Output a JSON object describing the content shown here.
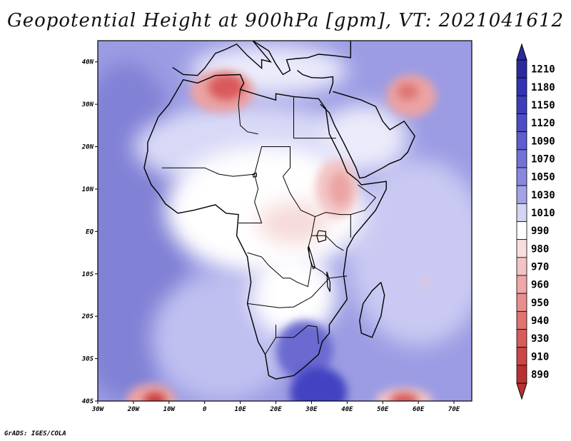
{
  "title": "Geopotential Height at 900hPa [gpm], VT: 2021041612",
  "credit": "GrADS: IGES/COLA",
  "map": {
    "lon_range": [
      -30,
      75
    ],
    "lat_range": [
      -40,
      45
    ],
    "lon_ticks": [
      {
        "value": -30,
        "label": "30W"
      },
      {
        "value": -20,
        "label": "20W"
      },
      {
        "value": -10,
        "label": "10W"
      },
      {
        "value": 0,
        "label": "0"
      },
      {
        "value": 10,
        "label": "10E"
      },
      {
        "value": 20,
        "label": "20E"
      },
      {
        "value": 30,
        "label": "30E"
      },
      {
        "value": 40,
        "label": "40E"
      },
      {
        "value": 50,
        "label": "50E"
      },
      {
        "value": 60,
        "label": "60E"
      },
      {
        "value": 70,
        "label": "70E"
      }
    ],
    "lat_ticks": [
      {
        "value": 40,
        "label": "40N"
      },
      {
        "value": 30,
        "label": "30N"
      },
      {
        "value": 20,
        "label": "20N"
      },
      {
        "value": 10,
        "label": "10N"
      },
      {
        "value": 0,
        "label": "EQ"
      },
      {
        "value": -10,
        "label": "10S"
      },
      {
        "value": -20,
        "label": "20S"
      },
      {
        "value": -30,
        "label": "30S"
      },
      {
        "value": -40,
        "label": "40S"
      }
    ],
    "background_color": "#9c9ce4",
    "coastline_color": "#000000",
    "field_blobs": [
      {
        "name": "atlantic-deep",
        "lon": -22,
        "lat": 0,
        "rx_deg": 18,
        "ry_deg": 40,
        "color": "#8181d6"
      },
      {
        "name": "southeast-atlantic",
        "lon": 5,
        "lat": -25,
        "rx_deg": 20,
        "ry_deg": 15,
        "color": "#bfbff0"
      },
      {
        "name": "indian-ocean",
        "lon": 60,
        "lat": -5,
        "rx_deg": 20,
        "ry_deg": 22,
        "color": "#c9c9f3"
      },
      {
        "name": "africa-belt-north",
        "lon": 12,
        "lat": 20,
        "rx_deg": 32,
        "ry_deg": 10,
        "color": "#d9d9f7"
      },
      {
        "name": "africa-belt-central",
        "lon": 17,
        "lat": 5,
        "rx_deg": 28,
        "ry_deg": 15,
        "color": "#ffffff"
      },
      {
        "name": "southern-africa",
        "lon": 25,
        "lat": -15,
        "rx_deg": 12,
        "ry_deg": 10,
        "color": "#ffffff"
      },
      {
        "name": "south-africa-high",
        "lon": 28,
        "lat": -28,
        "rx_deg": 8,
        "ry_deg": 7,
        "color": "#6a6ad0"
      },
      {
        "name": "mozambique-channel-high",
        "lon": 32,
        "lat": -38,
        "rx_deg": 8,
        "ry_deg": 6,
        "color": "#4343c2"
      },
      {
        "name": "mediterranean",
        "lon": 18,
        "lat": 38,
        "rx_deg": 22,
        "ry_deg": 6,
        "color": "#ebebfb"
      },
      {
        "name": "arabia",
        "lon": 45,
        "lat": 22,
        "rx_deg": 12,
        "ry_deg": 8,
        "color": "#ebebfb"
      },
      {
        "name": "horn-low",
        "lon": 37,
        "lat": 10,
        "rx_deg": 6,
        "ry_deg": 7,
        "color": "#f3c4c4"
      },
      {
        "name": "horn-low-core",
        "lon": 38,
        "lat": 10,
        "rx_deg": 3,
        "ry_deg": 4,
        "color": "#eba3a3"
      },
      {
        "name": "great-lakes-low",
        "lon": 25,
        "lat": 2,
        "rx_deg": 10,
        "ry_deg": 5,
        "color": "#f6dada"
      },
      {
        "name": "sahara-low",
        "lon": 5,
        "lat": 33,
        "rx_deg": 9,
        "ry_deg": 5,
        "color": "#eba3a3"
      },
      {
        "name": "sahara-low-core",
        "lon": 6,
        "lat": 34,
        "rx_deg": 5,
        "ry_deg": 3,
        "color": "#d95a5a"
      },
      {
        "name": "persian-low",
        "lon": 58,
        "lat": 32,
        "rx_deg": 7,
        "ry_deg": 5,
        "color": "#eba3a3"
      },
      {
        "name": "persian-low-core",
        "lon": 57,
        "lat": 33,
        "rx_deg": 3,
        "ry_deg": 2,
        "color": "#df7474"
      },
      {
        "name": "south-atlantic-low",
        "lon": -15,
        "lat": -40,
        "rx_deg": 7,
        "ry_deg": 4,
        "color": "#eba3a3"
      },
      {
        "name": "south-atlantic-low-core",
        "lon": -14,
        "lat": -40,
        "rx_deg": 3,
        "ry_deg": 2,
        "color": "#c83a3a"
      },
      {
        "name": "south-indian-low",
        "lon": 56,
        "lat": -40,
        "rx_deg": 8,
        "ry_deg": 3,
        "color": "#f3c4c4"
      },
      {
        "name": "south-indian-low-core",
        "lon": 56,
        "lat": -40,
        "rx_deg": 4,
        "ry_deg": 2,
        "color": "#d95a5a"
      },
      {
        "name": "madagascar-spot",
        "lon": 62,
        "lat": -12,
        "rx_deg": 1,
        "ry_deg": 1,
        "color": "#f3c4c4"
      }
    ],
    "coastlines": [
      {
        "name": "africa-coastline",
        "points": [
          [
            -17,
            15
          ],
          [
            -16,
            19
          ],
          [
            -16,
            21
          ],
          [
            -13,
            27
          ],
          [
            -10,
            30
          ],
          [
            -6,
            35.8
          ],
          [
            -2,
            35
          ],
          [
            3,
            36.8
          ],
          [
            10,
            37
          ],
          [
            11,
            35
          ],
          [
            10,
            33.5
          ],
          [
            15,
            32.2
          ],
          [
            20,
            31
          ],
          [
            20,
            32.5
          ],
          [
            25,
            31.8
          ],
          [
            32,
            31.3
          ],
          [
            34,
            29
          ],
          [
            35,
            23
          ],
          [
            38,
            18
          ],
          [
            40,
            14
          ],
          [
            43,
            12
          ],
          [
            44,
            11
          ],
          [
            51,
            11.8
          ],
          [
            51,
            10
          ],
          [
            48,
            5
          ],
          [
            42,
            -1
          ],
          [
            40,
            -4
          ],
          [
            39,
            -10
          ],
          [
            40,
            -16
          ],
          [
            35,
            -22
          ],
          [
            35,
            -24
          ],
          [
            33,
            -26
          ],
          [
            32,
            -29
          ],
          [
            28,
            -32
          ],
          [
            25,
            -34
          ],
          [
            20,
            -34.8
          ],
          [
            18,
            -34
          ],
          [
            17,
            -29
          ],
          [
            15,
            -26
          ],
          [
            12,
            -17
          ],
          [
            13,
            -12
          ],
          [
            12,
            -6
          ],
          [
            9,
            -1
          ],
          [
            9.5,
            4
          ],
          [
            6,
            4.3
          ],
          [
            3,
            6.3
          ],
          [
            -3,
            5
          ],
          [
            -7.5,
            4.3
          ],
          [
            -11,
            6.5
          ],
          [
            -13,
            9
          ],
          [
            -15,
            11
          ],
          [
            -17,
            15
          ]
        ]
      },
      {
        "name": "madagascar-coastline",
        "points": [
          [
            49.5,
            -12
          ],
          [
            50.5,
            -15
          ],
          [
            49.5,
            -20
          ],
          [
            47,
            -25
          ],
          [
            44,
            -24
          ],
          [
            43.5,
            -21
          ],
          [
            44.5,
            -17
          ],
          [
            47,
            -14
          ],
          [
            49.5,
            -12
          ]
        ]
      },
      {
        "name": "arabia-coastline",
        "points": [
          [
            32.5,
            30
          ],
          [
            35,
            28
          ],
          [
            36.5,
            25
          ],
          [
            39,
            21
          ],
          [
            42.5,
            15
          ],
          [
            43.5,
            12.6
          ],
          [
            45,
            12.8
          ],
          [
            50,
            15
          ],
          [
            52,
            16
          ],
          [
            55,
            17
          ],
          [
            57,
            18.7
          ],
          [
            59,
            22.5
          ],
          [
            56,
            26
          ],
          [
            52,
            24
          ],
          [
            50,
            26
          ],
          [
            48,
            29.5
          ],
          [
            44,
            31
          ],
          [
            36,
            33
          ]
        ]
      },
      {
        "name": "europe-south-coastline",
        "points": [
          [
            -9,
            38.7
          ],
          [
            -6,
            37
          ],
          [
            -2,
            36.8
          ],
          [
            0,
            38.5
          ],
          [
            3,
            42
          ],
          [
            6,
            43
          ],
          [
            9,
            44.2
          ],
          [
            12,
            41.5
          ],
          [
            16,
            38.5
          ],
          [
            16,
            40.5
          ],
          [
            18.5,
            40
          ],
          [
            13.5,
            45
          ],
          [
            18,
            42.6
          ],
          [
            20,
            39.5
          ],
          [
            22,
            37
          ],
          [
            24,
            38
          ],
          [
            23,
            40.5
          ],
          [
            26,
            40.8
          ],
          [
            29,
            41
          ],
          [
            32,
            41.8
          ],
          [
            36,
            41.5
          ],
          [
            41,
            41
          ],
          [
            41,
            45
          ]
        ]
      },
      {
        "name": "turkey-south-coastline",
        "points": [
          [
            26,
            38
          ],
          [
            27.5,
            37
          ],
          [
            30,
            36.3
          ],
          [
            33,
            36.2
          ],
          [
            36,
            36.5
          ],
          [
            36,
            35
          ],
          [
            35,
            32.5
          ]
        ]
      }
    ],
    "borders": [
      {
        "name": "algeria-libya",
        "points": [
          [
            10,
            33.5
          ],
          [
            9.5,
            30
          ],
          [
            10,
            25
          ],
          [
            12,
            23.5
          ],
          [
            15,
            23
          ]
        ]
      },
      {
        "name": "libya-egypt",
        "points": [
          [
            25,
            31.8
          ],
          [
            25,
            22
          ]
        ]
      },
      {
        "name": "egypt-sudan",
        "points": [
          [
            25,
            22
          ],
          [
            36.9,
            22
          ]
        ]
      },
      {
        "name": "sahel-line",
        "points": [
          [
            -12,
            15
          ],
          [
            -5,
            15
          ],
          [
            0,
            15
          ],
          [
            4,
            13.5
          ],
          [
            8,
            13
          ],
          [
            14,
            13.5
          ],
          [
            16,
            20
          ],
          [
            24,
            20
          ],
          [
            24,
            15
          ],
          [
            22,
            13
          ],
          [
            24,
            9
          ],
          [
            27,
            5
          ],
          [
            31,
            3.5
          ],
          [
            34,
            4.5
          ],
          [
            38,
            4
          ],
          [
            41,
            4
          ],
          [
            41,
            -1.5
          ]
        ]
      },
      {
        "name": "chad-cameroon",
        "points": [
          [
            14,
            13.5
          ],
          [
            15,
            10
          ],
          [
            14,
            7
          ],
          [
            16,
            2
          ],
          [
            9.5,
            2
          ]
        ]
      },
      {
        "name": "drc-outline",
        "points": [
          [
            12,
            -5
          ],
          [
            16,
            -6
          ],
          [
            18,
            -8
          ],
          [
            22,
            -11
          ],
          [
            24,
            -11
          ],
          [
            26,
            -12
          ],
          [
            29,
            -13
          ],
          [
            30,
            -8
          ],
          [
            29,
            -4
          ],
          [
            30,
            -1
          ],
          [
            31,
            3.5
          ]
        ]
      },
      {
        "name": "angola-namibia",
        "points": [
          [
            12,
            -17
          ],
          [
            21,
            -18
          ],
          [
            25,
            -17.8
          ],
          [
            30,
            -15.5
          ],
          [
            35,
            -11
          ]
        ]
      },
      {
        "name": "namibia-sa",
        "points": [
          [
            20,
            -22
          ],
          [
            20,
            -25
          ],
          [
            17,
            -29
          ]
        ]
      },
      {
        "name": "sa-north",
        "points": [
          [
            20,
            -25
          ],
          [
            25,
            -25
          ],
          [
            29,
            -22.2
          ],
          [
            31.5,
            -22.5
          ],
          [
            32,
            -26.5
          ]
        ]
      },
      {
        "name": "zambia-tanzania",
        "points": [
          [
            30,
            -8
          ],
          [
            33,
            -9.5
          ],
          [
            35,
            -11
          ],
          [
            40,
            -10.5
          ]
        ]
      },
      {
        "name": "ethiopia-somalia",
        "points": [
          [
            41,
            4
          ],
          [
            45,
            5
          ],
          [
            48,
            8
          ],
          [
            43,
            11
          ]
        ]
      },
      {
        "name": "east-africa-lakes",
        "points": [
          [
            30,
            -1
          ],
          [
            34,
            -1
          ],
          [
            37,
            -3.5
          ],
          [
            39,
            -4.5
          ]
        ]
      }
    ],
    "lakes": [
      {
        "name": "lake-victoria",
        "points": [
          [
            32,
            0.2
          ],
          [
            34,
            0
          ],
          [
            34,
            -2
          ],
          [
            32,
            -2.5
          ],
          [
            31.5,
            -1
          ],
          [
            32,
            0.2
          ]
        ]
      },
      {
        "name": "lake-tanganyika",
        "points": [
          [
            29.2,
            -3.5
          ],
          [
            30,
            -5.5
          ],
          [
            31,
            -8.5
          ],
          [
            30.5,
            -8.8
          ],
          [
            29.4,
            -6
          ],
          [
            29.2,
            -3.5
          ]
        ]
      },
      {
        "name": "lake-malawi",
        "points": [
          [
            34.3,
            -9.5
          ],
          [
            35.2,
            -12
          ],
          [
            35.2,
            -14.2
          ],
          [
            34.5,
            -13
          ],
          [
            34.3,
            -9.5
          ]
        ]
      },
      {
        "name": "lake-chad",
        "points": [
          [
            13.5,
            13.5
          ],
          [
            14.5,
            13.8
          ],
          [
            14.6,
            13
          ],
          [
            13.7,
            12.8
          ],
          [
            13.5,
            13.5
          ]
        ]
      }
    ]
  },
  "colorbar": {
    "levels": [
      {
        "label": "1210",
        "color": "#2a2a9e"
      },
      {
        "label": "1180",
        "color": "#3333b3"
      },
      {
        "label": "1150",
        "color": "#3d3dbc"
      },
      {
        "label": "1120",
        "color": "#4c4cc7"
      },
      {
        "label": "1090",
        "color": "#5e5ecf"
      },
      {
        "label": "1070",
        "color": "#7373d6"
      },
      {
        "label": "1050",
        "color": "#8888de"
      },
      {
        "label": "1030",
        "color": "#a3a3e6"
      },
      {
        "label": "1010",
        "color": "#d4d4f4"
      },
      {
        "label": "990",
        "color": "#ffffff"
      },
      {
        "label": "980",
        "color": "#f8dede"
      },
      {
        "label": "970",
        "color": "#f3c4c4"
      },
      {
        "label": "960",
        "color": "#eea8a8"
      },
      {
        "label": "950",
        "color": "#e88e8e"
      },
      {
        "label": "940",
        "color": "#e07272"
      },
      {
        "label": "930",
        "color": "#d75c5c"
      },
      {
        "label": "910",
        "color": "#cb4646"
      },
      {
        "label": "890",
        "color": "#b93232"
      }
    ],
    "top_arrow_color": "#2a2a9e",
    "bottom_arrow_color": "#b93232"
  }
}
